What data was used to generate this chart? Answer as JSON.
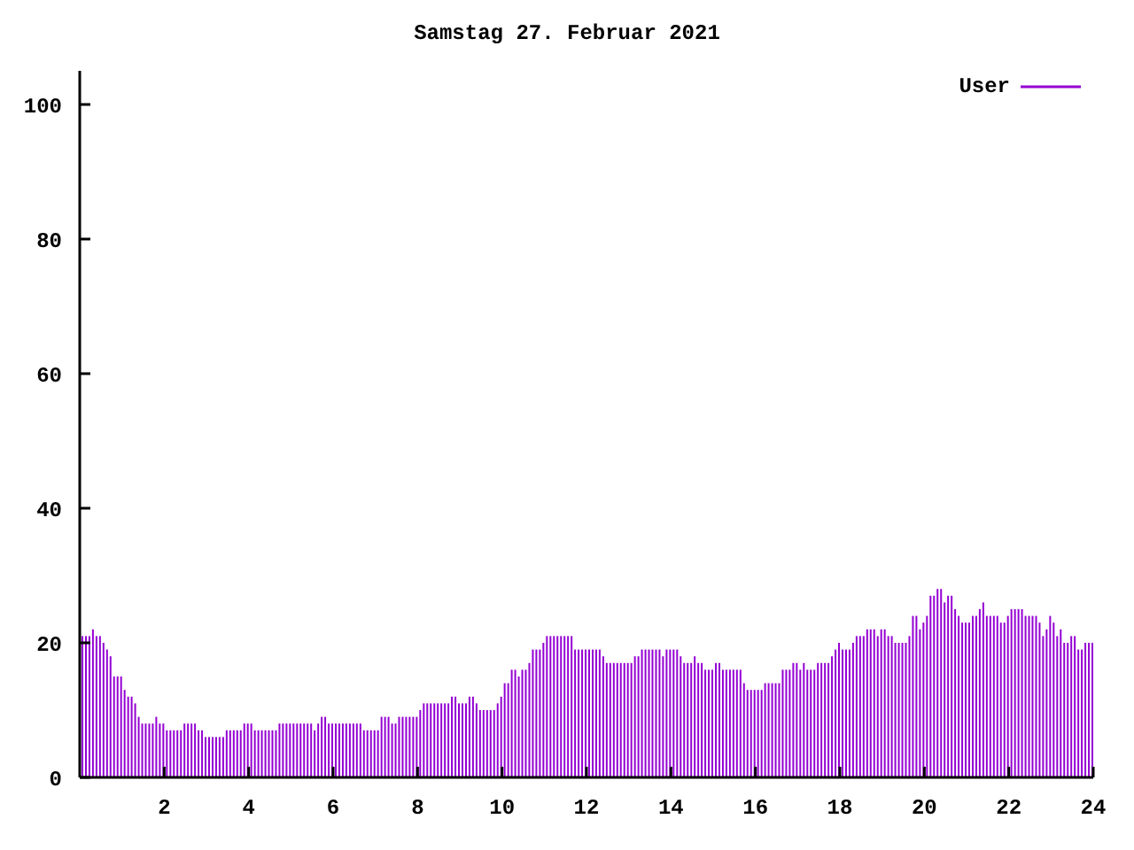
{
  "chart_data": {
    "type": "bar",
    "title": "Samstag 27. Februar 2021",
    "x": [
      0.083,
      0.167,
      0.25,
      0.333,
      0.417,
      0.5,
      0.583,
      0.667,
      0.75,
      0.833,
      0.917,
      1,
      1.083,
      1.167,
      1.25,
      1.333,
      1.417,
      1.5,
      1.583,
      1.667,
      1.75,
      1.833,
      1.917,
      2,
      2.083,
      2.167,
      2.25,
      2.333,
      2.417,
      2.5,
      2.583,
      2.667,
      2.75,
      2.833,
      2.917,
      3,
      3.083,
      3.167,
      3.25,
      3.333,
      3.417,
      3.5,
      3.583,
      3.667,
      3.75,
      3.833,
      3.917,
      4,
      4.083,
      4.167,
      4.25,
      4.333,
      4.417,
      4.5,
      4.583,
      4.667,
      4.75,
      4.833,
      4.917,
      5,
      5.083,
      5.167,
      5.25,
      5.333,
      5.417,
      5.5,
      5.583,
      5.667,
      5.75,
      5.833,
      5.917,
      6,
      6.083,
      6.167,
      6.25,
      6.333,
      6.417,
      6.5,
      6.583,
      6.667,
      6.75,
      6.833,
      6.917,
      7,
      7.083,
      7.167,
      7.25,
      7.333,
      7.417,
      7.5,
      7.583,
      7.667,
      7.75,
      7.833,
      7.917,
      8,
      8.083,
      8.167,
      8.25,
      8.333,
      8.417,
      8.5,
      8.583,
      8.667,
      8.75,
      8.833,
      8.917,
      9,
      9.083,
      9.167,
      9.25,
      9.333,
      9.417,
      9.5,
      9.583,
      9.667,
      9.75,
      9.833,
      9.917,
      10,
      10.083,
      10.167,
      10.25,
      10.333,
      10.417,
      10.5,
      10.583,
      10.667,
      10.75,
      10.833,
      10.917,
      11,
      11.083,
      11.167,
      11.25,
      11.333,
      11.417,
      11.5,
      11.583,
      11.667,
      11.75,
      11.833,
      11.917,
      12,
      12.083,
      12.167,
      12.25,
      12.333,
      12.417,
      12.5,
      12.583,
      12.667,
      12.75,
      12.833,
      12.917,
      13,
      13.083,
      13.167,
      13.25,
      13.333,
      13.417,
      13.5,
      13.583,
      13.667,
      13.75,
      13.833,
      13.917,
      14,
      14.083,
      14.167,
      14.25,
      14.333,
      14.417,
      14.5,
      14.583,
      14.667,
      14.75,
      14.833,
      14.917,
      15,
      15.083,
      15.167,
      15.25,
      15.333,
      15.417,
      15.5,
      15.583,
      15.667,
      15.75,
      15.833,
      15.917,
      16,
      16.083,
      16.167,
      16.25,
      16.333,
      16.417,
      16.5,
      16.583,
      16.667,
      16.75,
      16.833,
      16.917,
      17,
      17.083,
      17.167,
      17.25,
      17.333,
      17.417,
      17.5,
      17.583,
      17.667,
      17.75,
      17.833,
      17.917,
      18,
      18.083,
      18.167,
      18.25,
      18.333,
      18.417,
      18.5,
      18.583,
      18.667,
      18.75,
      18.833,
      18.917,
      19,
      19.083,
      19.167,
      19.25,
      19.333,
      19.417,
      19.5,
      19.583,
      19.667,
      19.75,
      19.833,
      19.917,
      20,
      20.083,
      20.167,
      20.25,
      20.333,
      20.417,
      20.5,
      20.583,
      20.667,
      20.75,
      20.833,
      20.917,
      21,
      21.083,
      21.167,
      21.25,
      21.333,
      21.417,
      21.5,
      21.583,
      21.667,
      21.75,
      21.833,
      21.917,
      22,
      22.083,
      22.167,
      22.25,
      22.333,
      22.417,
      22.5,
      22.583,
      22.667,
      22.75,
      22.833,
      22.917,
      23,
      23.083,
      23.167,
      23.25,
      23.333,
      23.417,
      23.5,
      23.583,
      23.667,
      23.75,
      23.833,
      23.917,
      24
    ],
    "series": [
      {
        "name": "User",
        "color": "#9400d3",
        "values": [
          21,
          21,
          21,
          22,
          21,
          21,
          20,
          19,
          18,
          15,
          15,
          15,
          13,
          12,
          12,
          11,
          9,
          8,
          8,
          8,
          8,
          9,
          8,
          8,
          7,
          7,
          7,
          7,
          7,
          8,
          8,
          8,
          8,
          7,
          7,
          6,
          6,
          6,
          6,
          6,
          6,
          7,
          7,
          7,
          7,
          7,
          8,
          8,
          8,
          7,
          7,
          7,
          7,
          7,
          7,
          7,
          8,
          8,
          8,
          8,
          8,
          8,
          8,
          8,
          8,
          8,
          7,
          8,
          9,
          9,
          8,
          8,
          8,
          8,
          8,
          8,
          8,
          8,
          8,
          8,
          7,
          7,
          7,
          7,
          7,
          9,
          9,
          9,
          8,
          8,
          9,
          9,
          9,
          9,
          9,
          9,
          10,
          11,
          11,
          11,
          11,
          11,
          11,
          11,
          11,
          12,
          12,
          11,
          11,
          11,
          12,
          12,
          11,
          10,
          10,
          10,
          10,
          10,
          11,
          12,
          14,
          14,
          16,
          16,
          15,
          16,
          16,
          17,
          19,
          19,
          19,
          20,
          21,
          21,
          21,
          21,
          21,
          21,
          21,
          21,
          19,
          19,
          19,
          19,
          19,
          19,
          19,
          19,
          18,
          17,
          17,
          17,
          17,
          17,
          17,
          17,
          17,
          18,
          18,
          19,
          19,
          19,
          19,
          19,
          19,
          18,
          19,
          19,
          19,
          19,
          18,
          17,
          17,
          17,
          18,
          17,
          17,
          16,
          16,
          16,
          17,
          17,
          16,
          16,
          16,
          16,
          16,
          16,
          14,
          13,
          13,
          13,
          13,
          13,
          14,
          14,
          14,
          14,
          14,
          16,
          16,
          16,
          17,
          17,
          16,
          17,
          16,
          16,
          16,
          17,
          17,
          17,
          17,
          18,
          19,
          20,
          19,
          19,
          19,
          20,
          21,
          21,
          21,
          22,
          22,
          22,
          21,
          22,
          22,
          21,
          21,
          20,
          20,
          20,
          20,
          21,
          24,
          24,
          22,
          23,
          24,
          27,
          27,
          28,
          28,
          26,
          27,
          27,
          25,
          24,
          23,
          23,
          23,
          24,
          24,
          25,
          26,
          24,
          24,
          24,
          24,
          23,
          23,
          24,
          25,
          25,
          25,
          25,
          24,
          24,
          24,
          24,
          23,
          21,
          22,
          24,
          23,
          21,
          22,
          20,
          20,
          21,
          21,
          19,
          19,
          20,
          20,
          20
        ]
      }
    ],
    "xlim": [
      0,
      24
    ],
    "xticks": [
      2,
      4,
      6,
      8,
      10,
      12,
      14,
      16,
      18,
      20,
      22,
      24
    ],
    "ylim": [
      0,
      105
    ],
    "yticks": [
      0,
      20,
      40,
      60,
      80,
      100
    ],
    "legend": "top right"
  }
}
